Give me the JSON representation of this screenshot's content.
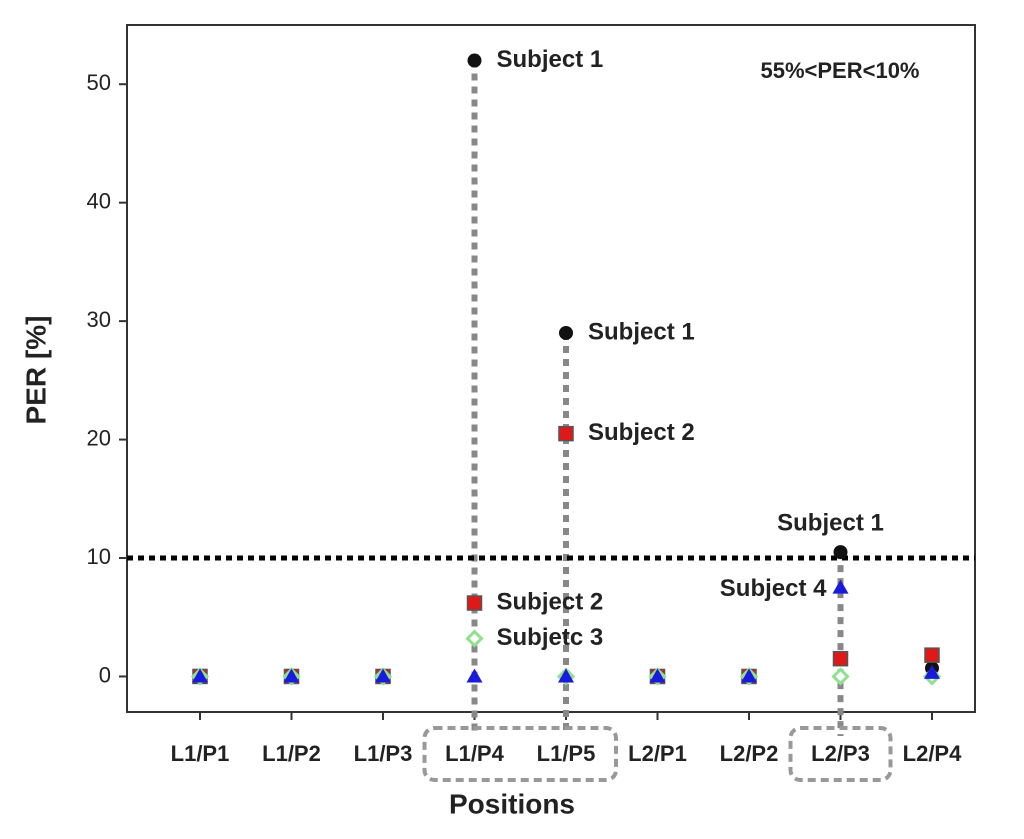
{
  "chart_data": {
    "type": "scatter",
    "annotation": "55%<PER<10%",
    "y_label": "PER [%]",
    "x_label": "Positions",
    "categories": [
      "L1/P1",
      "L1/P2",
      "L1/P3",
      "L1/P4",
      "L1/P5",
      "L2/P1",
      "L2/P2",
      "L2/P3",
      "L2/P4"
    ],
    "series": [
      {
        "name": "Subject 1",
        "color": "#111111",
        "marker": "circle",
        "values": [
          0,
          0,
          0,
          52,
          29,
          0,
          0,
          10.5,
          0.7
        ]
      },
      {
        "name": "Subject 2",
        "color": "#e01818",
        "marker": "square",
        "values": [
          0,
          0,
          0,
          6.2,
          20.5,
          0,
          0,
          1.5,
          1.8
        ]
      },
      {
        "name": "Subjetc 3",
        "color": "#8fe08f",
        "marker": "diamond",
        "values": [
          0,
          0,
          0,
          3.2,
          0,
          0,
          0,
          0,
          0
        ]
      },
      {
        "name": "Subject 4",
        "color": "#1a1adc",
        "marker": "triangle",
        "values": [
          0,
          0,
          0,
          0,
          0,
          0,
          0,
          7.5,
          0.3
        ]
      }
    ],
    "labeled_points": [
      [
        0,
        3
      ],
      [
        0,
        4
      ],
      [
        1,
        4
      ],
      [
        0,
        7
      ],
      [
        1,
        3
      ],
      [
        2,
        3
      ],
      [
        3,
        7
      ]
    ],
    "threshold": 10,
    "highlight": [
      3,
      4,
      7
    ],
    "ylim": [
      -3,
      55
    ],
    "yticks": [
      0,
      10,
      20,
      30,
      40,
      50
    ],
    "grid": false
  }
}
